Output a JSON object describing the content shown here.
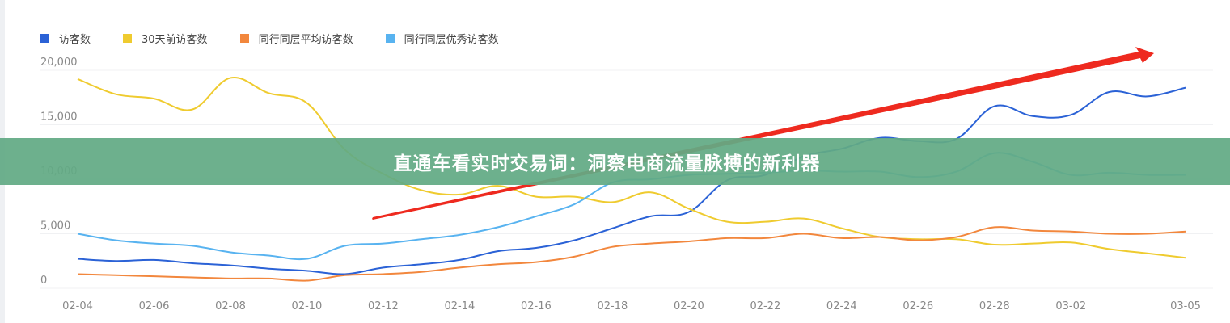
{
  "chart_data": {
    "type": "line",
    "title": "",
    "xlabel": "",
    "ylabel": "",
    "ylim": [
      0,
      20000
    ],
    "yticks": [
      "0",
      "5,000",
      "10,000",
      "15,000",
      "20,000"
    ],
    "ytick_values": [
      0,
      5000,
      10000,
      15000,
      20000
    ],
    "grid": "horizontal",
    "legend_position": "top-left",
    "x": [
      "02-04",
      "02-05",
      "02-06",
      "02-07",
      "02-08",
      "02-09",
      "02-10",
      "02-11",
      "02-12",
      "02-13",
      "02-14",
      "02-15",
      "02-16",
      "02-17",
      "02-18",
      "02-19",
      "02-20",
      "02-21",
      "02-22",
      "02-23",
      "02-24",
      "02-25",
      "02-26",
      "02-27",
      "02-28",
      "03-01",
      "03-02",
      "03-03",
      "03-04",
      "03-05"
    ],
    "xtick_labels": [
      "02-04",
      "02-06",
      "02-08",
      "02-10",
      "02-12",
      "02-14",
      "02-16",
      "02-18",
      "02-20",
      "02-22",
      "02-24",
      "02-26",
      "02-28",
      "03-02",
      "03-05"
    ],
    "series": [
      {
        "name": "访客数",
        "color": "#2b62d6",
        "values": [
          2700,
          2500,
          2600,
          2300,
          2100,
          1800,
          1600,
          1300,
          1900,
          2200,
          2600,
          3400,
          3700,
          4400,
          5500,
          6600,
          7000,
          9900,
          10400,
          12100,
          12800,
          13800,
          13500,
          13700,
          16700,
          15800,
          15900,
          18000,
          17600,
          18400
        ]
      },
      {
        "name": "30天前访客数",
        "color": "#efcb2f",
        "values": [
          19200,
          17800,
          17400,
          16400,
          19300,
          17900,
          17000,
          12700,
          10500,
          9000,
          8600,
          9400,
          8400,
          8400,
          7900,
          8800,
          7300,
          6100,
          6100,
          6400,
          5500,
          4700,
          4500,
          4500,
          4000,
          4100,
          4200,
          3600,
          3200,
          2800
        ]
      },
      {
        "name": "同行同层平均访客数",
        "color": "#f2873d",
        "values": [
          1300,
          1200,
          1100,
          1000,
          900,
          900,
          700,
          1200,
          1300,
          1500,
          1900,
          2200,
          2400,
          2900,
          3800,
          4100,
          4300,
          4600,
          4600,
          5000,
          4600,
          4700,
          4400,
          4700,
          5600,
          5300,
          5200,
          5000,
          5000,
          5200
        ]
      },
      {
        "name": "同行同层优秀访客数",
        "color": "#58b3f0",
        "values": [
          5000,
          4400,
          4100,
          3900,
          3300,
          3000,
          2700,
          3900,
          4100,
          4500,
          4900,
          5600,
          6600,
          7700,
          9700,
          10000,
          10400,
          10500,
          10600,
          10800,
          10700,
          10700,
          10200,
          10700,
          12400,
          11600,
          10400,
          10600,
          10400,
          10400
        ]
      }
    ],
    "annotation_arrow_color": "#ee2a1f"
  },
  "banner": {
    "text": "直通车看实时交易词：洞察电商流量脉搏的新利器",
    "color": "#62aa84"
  }
}
